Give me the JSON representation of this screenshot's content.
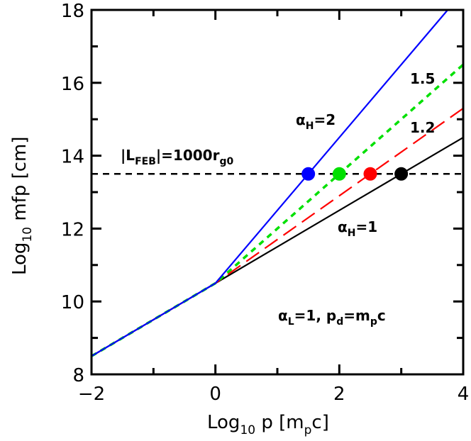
{
  "chart_data": {
    "type": "line",
    "xlabel": "Log10 p [mpc]",
    "ylabel": "Log10 mfp [cm]",
    "xlim": [
      -2,
      4
    ],
    "ylim": [
      8,
      18
    ],
    "x_ticks": [
      "−2",
      "0",
      "2",
      "4"
    ],
    "y_ticks": [
      "8",
      "10",
      "12",
      "14",
      "16",
      "18"
    ],
    "grid": false,
    "series": [
      {
        "label": "αH=1",
        "color": "#000000",
        "style": "solid",
        "x": [
          -2,
          0,
          4
        ],
        "y": [
          8.5,
          10.5,
          14.5
        ]
      },
      {
        "label": "1.2",
        "color": "#ff0000",
        "style": "dashed",
        "x": [
          -2,
          0,
          4
        ],
        "y": [
          8.5,
          10.5,
          15.3
        ]
      },
      {
        "label": "1.5",
        "color": "#00e000",
        "style": "dotted",
        "x": [
          -2,
          0,
          4
        ],
        "y": [
          8.5,
          10.5,
          16.5
        ]
      },
      {
        "label": "αH=2",
        "color": "#0000ff",
        "style": "solid",
        "x": [
          -2,
          0,
          3.75
        ],
        "y": [
          8.5,
          10.5,
          18
        ]
      }
    ],
    "hline": {
      "y": 13.5,
      "label": "|LFEB|=1000rg0",
      "color": "#000000",
      "style": "dashed"
    },
    "points": [
      {
        "x": 1.5,
        "y": 13.5,
        "color": "#0000ff"
      },
      {
        "x": 2.0,
        "y": 13.5,
        "color": "#00e000"
      },
      {
        "x": 2.5,
        "y": 13.5,
        "color": "#ff0000"
      },
      {
        "x": 3.0,
        "y": 13.5,
        "color": "#000000"
      }
    ],
    "annotations": {
      "params": "αL=1, pd=mpc"
    }
  }
}
